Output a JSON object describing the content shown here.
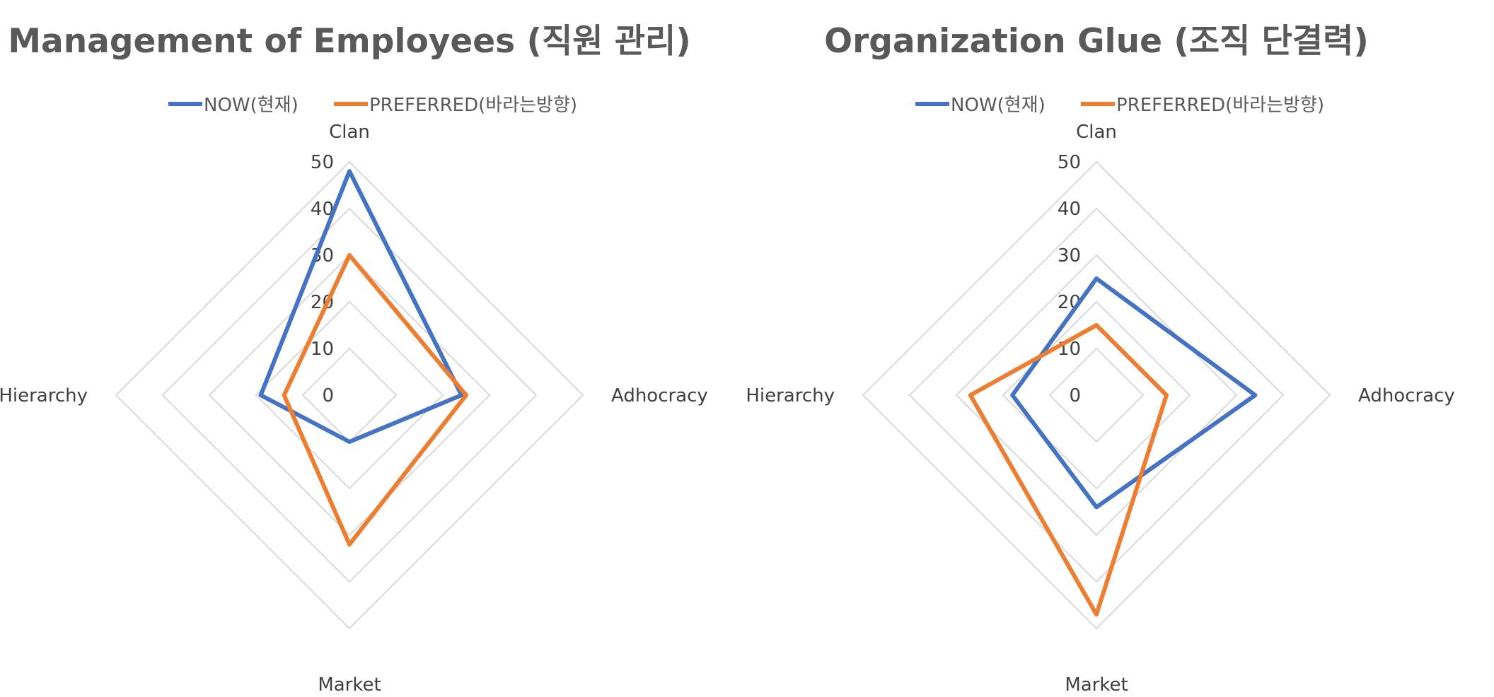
{
  "chart_data": [
    {
      "type": "radar",
      "title": "Management of Employees (직원 관리)",
      "categories": [
        "Clan",
        "Adhocracy",
        "Market",
        "Hierarchy"
      ],
      "ticks": [
        "0",
        "10",
        "20",
        "30",
        "40",
        "50"
      ],
      "rlim": [
        0,
        50
      ],
      "grid": true,
      "legend_position": "top",
      "series": [
        {
          "name": "NOW(현재)",
          "color": "#4472c4",
          "values": [
            48,
            24,
            10,
            19
          ]
        },
        {
          "name": "PREFERRED(바라는방향)",
          "color": "#ed7d31",
          "values": [
            30,
            25,
            32,
            14
          ]
        }
      ]
    },
    {
      "type": "radar",
      "title": "Organization Glue (조직 단결력)",
      "categories": [
        "Clan",
        "Adhocracy",
        "Market",
        "Hierarchy"
      ],
      "ticks": [
        "0",
        "10",
        "20",
        "30",
        "40",
        "50"
      ],
      "rlim": [
        0,
        50
      ],
      "grid": true,
      "legend_position": "top",
      "series": [
        {
          "name": "NOW(현재)",
          "color": "#4472c4",
          "values": [
            25,
            34,
            24,
            18
          ]
        },
        {
          "name": "PREFERRED(바라는방향)",
          "color": "#ed7d31",
          "values": [
            15,
            15,
            47,
            27
          ]
        }
      ]
    }
  ]
}
